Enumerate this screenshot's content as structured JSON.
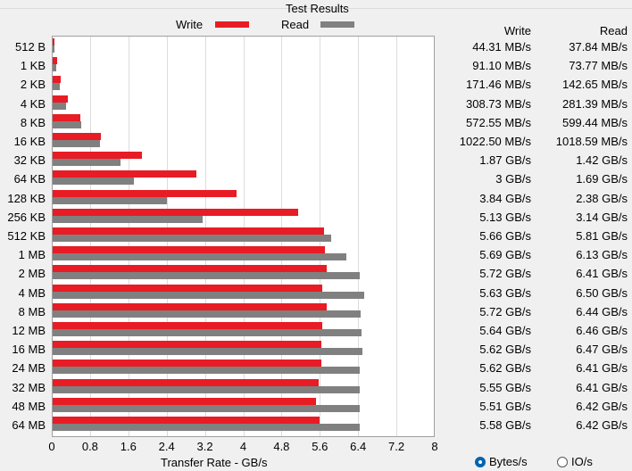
{
  "chart_data": {
    "type": "bar",
    "title": "Test Results",
    "xlabel": "Transfer Rate - GB/s",
    "xlim": [
      0,
      8
    ],
    "xticks": [
      "0",
      "0.8",
      "1.6",
      "2.4",
      "3.2",
      "4",
      "4.8",
      "5.6",
      "6.4",
      "7.2",
      "8"
    ],
    "grid": true,
    "legend_placement": "top",
    "categories": [
      "512 B",
      "1 KB",
      "2 KB",
      "4 KB",
      "8 KB",
      "16 KB",
      "32 KB",
      "64 KB",
      "128 KB",
      "256 KB",
      "512 KB",
      "1 MB",
      "2 MB",
      "4 MB",
      "8 MB",
      "12 MB",
      "16 MB",
      "24 MB",
      "32 MB",
      "48 MB",
      "64 MB"
    ],
    "series": [
      {
        "name": "Write",
        "color": "#e81c24",
        "values": [
          0.044,
          0.091,
          0.171,
          0.309,
          0.573,
          0.999,
          1.87,
          3.0,
          3.84,
          5.13,
          5.66,
          5.69,
          5.72,
          5.63,
          5.72,
          5.64,
          5.62,
          5.62,
          5.55,
          5.51,
          5.58
        ]
      },
      {
        "name": "Read",
        "color": "#808080",
        "values": [
          0.038,
          0.074,
          0.143,
          0.281,
          0.599,
          0.995,
          1.42,
          1.69,
          2.38,
          3.14,
          5.81,
          6.13,
          6.41,
          6.5,
          6.44,
          6.46,
          6.47,
          6.41,
          6.41,
          6.42,
          6.42
        ]
      }
    ]
  },
  "table": {
    "write_header": "Write",
    "read_header": "Read",
    "write": [
      "44.31 MB/s",
      "91.10 MB/s",
      "171.46 MB/s",
      "308.73 MB/s",
      "572.55 MB/s",
      "1022.50 MB/s",
      "1.87 GB/s",
      "3 GB/s",
      "3.84 GB/s",
      "5.13 GB/s",
      "5.66 GB/s",
      "5.69 GB/s",
      "5.72 GB/s",
      "5.63 GB/s",
      "5.72 GB/s",
      "5.64 GB/s",
      "5.62 GB/s",
      "5.62 GB/s",
      "5.55 GB/s",
      "5.51 GB/s",
      "5.58 GB/s"
    ],
    "read": [
      "37.84 MB/s",
      "73.77 MB/s",
      "142.65 MB/s",
      "281.39 MB/s",
      "599.44 MB/s",
      "1018.59 MB/s",
      "1.42 GB/s",
      "1.69 GB/s",
      "2.38 GB/s",
      "3.14 GB/s",
      "5.81 GB/s",
      "6.13 GB/s",
      "6.41 GB/s",
      "6.50 GB/s",
      "6.44 GB/s",
      "6.46 GB/s",
      "6.47 GB/s",
      "6.41 GB/s",
      "6.41 GB/s",
      "6.42 GB/s",
      "6.42 GB/s"
    ]
  },
  "units": {
    "bytes_label": "Bytes/s",
    "io_label": "IO/s",
    "selected": "Bytes/s",
    "accent": "#0063b1"
  }
}
